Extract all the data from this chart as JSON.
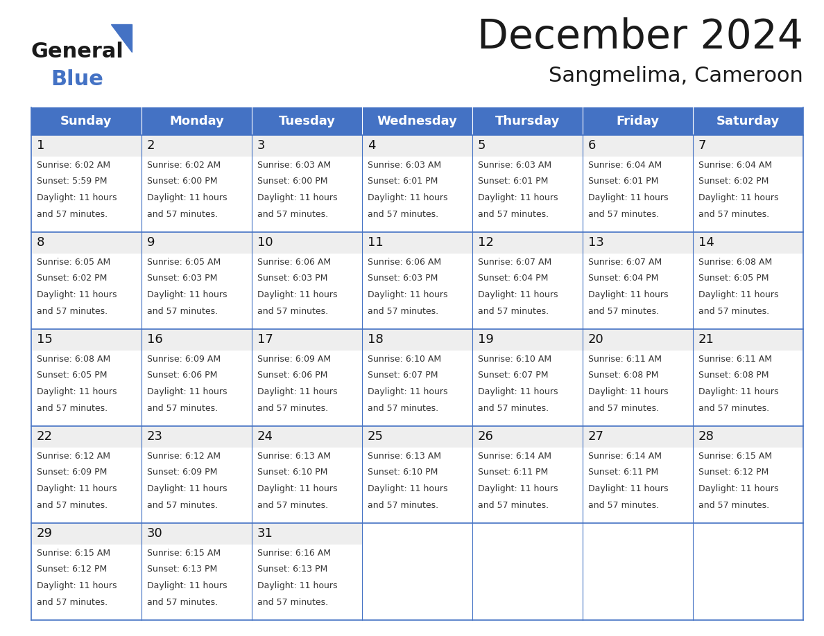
{
  "title": "December 2024",
  "subtitle": "Sangmelima, Cameroon",
  "header_bg": "#4472C4",
  "header_text_color": "#FFFFFF",
  "cell_border_color": "#4472C4",
  "day_number_bg": "#EEEEEE",
  "day_names": [
    "Sunday",
    "Monday",
    "Tuesday",
    "Wednesday",
    "Thursday",
    "Friday",
    "Saturday"
  ],
  "weeks": [
    [
      {
        "day": 1,
        "sunrise": "6:02 AM",
        "sunset": "5:59 PM",
        "daylight_line1": "Daylight: 11 hours",
        "daylight_line2": "and 57 minutes."
      },
      {
        "day": 2,
        "sunrise": "6:02 AM",
        "sunset": "6:00 PM",
        "daylight_line1": "Daylight: 11 hours",
        "daylight_line2": "and 57 minutes."
      },
      {
        "day": 3,
        "sunrise": "6:03 AM",
        "sunset": "6:00 PM",
        "daylight_line1": "Daylight: 11 hours",
        "daylight_line2": "and 57 minutes."
      },
      {
        "day": 4,
        "sunrise": "6:03 AM",
        "sunset": "6:01 PM",
        "daylight_line1": "Daylight: 11 hours",
        "daylight_line2": "and 57 minutes."
      },
      {
        "day": 5,
        "sunrise": "6:03 AM",
        "sunset": "6:01 PM",
        "daylight_line1": "Daylight: 11 hours",
        "daylight_line2": "and 57 minutes."
      },
      {
        "day": 6,
        "sunrise": "6:04 AM",
        "sunset": "6:01 PM",
        "daylight_line1": "Daylight: 11 hours",
        "daylight_line2": "and 57 minutes."
      },
      {
        "day": 7,
        "sunrise": "6:04 AM",
        "sunset": "6:02 PM",
        "daylight_line1": "Daylight: 11 hours",
        "daylight_line2": "and 57 minutes."
      }
    ],
    [
      {
        "day": 8,
        "sunrise": "6:05 AM",
        "sunset": "6:02 PM",
        "daylight_line1": "Daylight: 11 hours",
        "daylight_line2": "and 57 minutes."
      },
      {
        "day": 9,
        "sunrise": "6:05 AM",
        "sunset": "6:03 PM",
        "daylight_line1": "Daylight: 11 hours",
        "daylight_line2": "and 57 minutes."
      },
      {
        "day": 10,
        "sunrise": "6:06 AM",
        "sunset": "6:03 PM",
        "daylight_line1": "Daylight: 11 hours",
        "daylight_line2": "and 57 minutes."
      },
      {
        "day": 11,
        "sunrise": "6:06 AM",
        "sunset": "6:03 PM",
        "daylight_line1": "Daylight: 11 hours",
        "daylight_line2": "and 57 minutes."
      },
      {
        "day": 12,
        "sunrise": "6:07 AM",
        "sunset": "6:04 PM",
        "daylight_line1": "Daylight: 11 hours",
        "daylight_line2": "and 57 minutes."
      },
      {
        "day": 13,
        "sunrise": "6:07 AM",
        "sunset": "6:04 PM",
        "daylight_line1": "Daylight: 11 hours",
        "daylight_line2": "and 57 minutes."
      },
      {
        "day": 14,
        "sunrise": "6:08 AM",
        "sunset": "6:05 PM",
        "daylight_line1": "Daylight: 11 hours",
        "daylight_line2": "and 57 minutes."
      }
    ],
    [
      {
        "day": 15,
        "sunrise": "6:08 AM",
        "sunset": "6:05 PM",
        "daylight_line1": "Daylight: 11 hours",
        "daylight_line2": "and 57 minutes."
      },
      {
        "day": 16,
        "sunrise": "6:09 AM",
        "sunset": "6:06 PM",
        "daylight_line1": "Daylight: 11 hours",
        "daylight_line2": "and 57 minutes."
      },
      {
        "day": 17,
        "sunrise": "6:09 AM",
        "sunset": "6:06 PM",
        "daylight_line1": "Daylight: 11 hours",
        "daylight_line2": "and 57 minutes."
      },
      {
        "day": 18,
        "sunrise": "6:10 AM",
        "sunset": "6:07 PM",
        "daylight_line1": "Daylight: 11 hours",
        "daylight_line2": "and 57 minutes."
      },
      {
        "day": 19,
        "sunrise": "6:10 AM",
        "sunset": "6:07 PM",
        "daylight_line1": "Daylight: 11 hours",
        "daylight_line2": "and 57 minutes."
      },
      {
        "day": 20,
        "sunrise": "6:11 AM",
        "sunset": "6:08 PM",
        "daylight_line1": "Daylight: 11 hours",
        "daylight_line2": "and 57 minutes."
      },
      {
        "day": 21,
        "sunrise": "6:11 AM",
        "sunset": "6:08 PM",
        "daylight_line1": "Daylight: 11 hours",
        "daylight_line2": "and 57 minutes."
      }
    ],
    [
      {
        "day": 22,
        "sunrise": "6:12 AM",
        "sunset": "6:09 PM",
        "daylight_line1": "Daylight: 11 hours",
        "daylight_line2": "and 57 minutes."
      },
      {
        "day": 23,
        "sunrise": "6:12 AM",
        "sunset": "6:09 PM",
        "daylight_line1": "Daylight: 11 hours",
        "daylight_line2": "and 57 minutes."
      },
      {
        "day": 24,
        "sunrise": "6:13 AM",
        "sunset": "6:10 PM",
        "daylight_line1": "Daylight: 11 hours",
        "daylight_line2": "and 57 minutes."
      },
      {
        "day": 25,
        "sunrise": "6:13 AM",
        "sunset": "6:10 PM",
        "daylight_line1": "Daylight: 11 hours",
        "daylight_line2": "and 57 minutes."
      },
      {
        "day": 26,
        "sunrise": "6:14 AM",
        "sunset": "6:11 PM",
        "daylight_line1": "Daylight: 11 hours",
        "daylight_line2": "and 57 minutes."
      },
      {
        "day": 27,
        "sunrise": "6:14 AM",
        "sunset": "6:11 PM",
        "daylight_line1": "Daylight: 11 hours",
        "daylight_line2": "and 57 minutes."
      },
      {
        "day": 28,
        "sunrise": "6:15 AM",
        "sunset": "6:12 PM",
        "daylight_line1": "Daylight: 11 hours",
        "daylight_line2": "and 57 minutes."
      }
    ],
    [
      {
        "day": 29,
        "sunrise": "6:15 AM",
        "sunset": "6:12 PM",
        "daylight_line1": "Daylight: 11 hours",
        "daylight_line2": "and 57 minutes."
      },
      {
        "day": 30,
        "sunrise": "6:15 AM",
        "sunset": "6:13 PM",
        "daylight_line1": "Daylight: 11 hours",
        "daylight_line2": "and 57 minutes."
      },
      {
        "day": 31,
        "sunrise": "6:16 AM",
        "sunset": "6:13 PM",
        "daylight_line1": "Daylight: 11 hours",
        "daylight_line2": "and 57 minutes."
      },
      null,
      null,
      null,
      null
    ]
  ],
  "logo_general_color": "#1a1a1a",
  "logo_blue_color": "#4472C4",
  "bg_color": "#FFFFFF"
}
